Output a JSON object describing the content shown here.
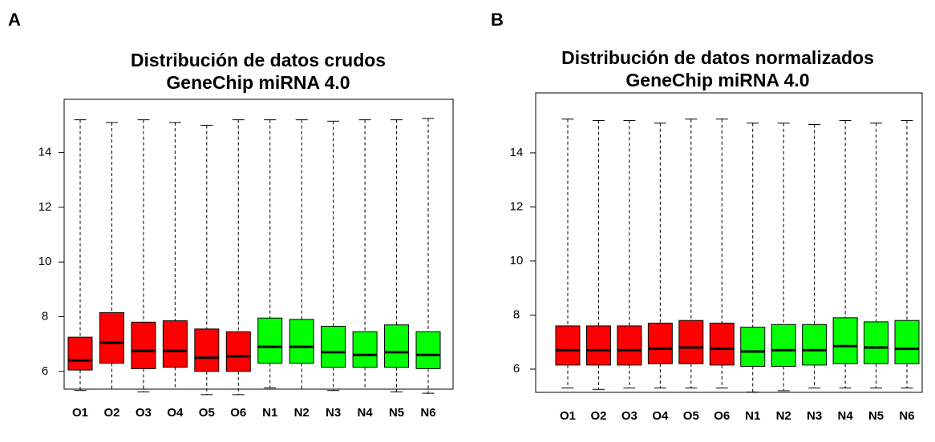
{
  "chart_data": [
    {
      "type": "boxplot",
      "panel_label": "A",
      "title": "Distribución de datos crudos",
      "subtitle": "GeneChip miRNA 4.0",
      "categories": [
        "O1",
        "O2",
        "O3",
        "O4",
        "O5",
        "O6",
        "N1",
        "N2",
        "N3",
        "N4",
        "N5",
        "N6"
      ],
      "colors": [
        "#ff0000",
        "#ff0000",
        "#ff0000",
        "#ff0000",
        "#ff0000",
        "#ff0000",
        "#00ff00",
        "#00ff00",
        "#00ff00",
        "#00ff00",
        "#00ff00",
        "#00ff00"
      ],
      "whisker_low": [
        5.3,
        5.35,
        5.25,
        5.35,
        5.15,
        5.15,
        5.4,
        5.35,
        5.3,
        5.35,
        5.25,
        5.2
      ],
      "q1": [
        6.05,
        6.3,
        6.1,
        6.15,
        6.0,
        6.0,
        6.3,
        6.3,
        6.15,
        6.15,
        6.15,
        6.1
      ],
      "median": [
        6.4,
        7.05,
        6.75,
        6.75,
        6.5,
        6.55,
        6.9,
        6.9,
        6.7,
        6.6,
        6.7,
        6.6
      ],
      "q3": [
        7.25,
        8.15,
        7.8,
        7.85,
        7.55,
        7.45,
        7.95,
        7.9,
        7.65,
        7.45,
        7.7,
        7.45
      ],
      "whisker_high": [
        15.2,
        15.1,
        15.2,
        15.1,
        15.0,
        15.2,
        15.2,
        15.2,
        15.15,
        15.2,
        15.2,
        15.25
      ],
      "ylim": [
        5.35,
        15.95
      ],
      "yticks": [
        6,
        8,
        10,
        12,
        14
      ]
    },
    {
      "type": "boxplot",
      "panel_label": "B",
      "title": "Distribución de datos normalizados",
      "subtitle": "GeneChip miRNA 4.0",
      "categories": [
        "O1",
        "O2",
        "O3",
        "O4",
        "O5",
        "O6",
        "N1",
        "N2",
        "N3",
        "N4",
        "N5",
        "N6"
      ],
      "colors": [
        "#ff0000",
        "#ff0000",
        "#ff0000",
        "#ff0000",
        "#ff0000",
        "#ff0000",
        "#00ff00",
        "#00ff00",
        "#00ff00",
        "#00ff00",
        "#00ff00",
        "#00ff00"
      ],
      "whisker_low": [
        5.3,
        5.25,
        5.3,
        5.3,
        5.3,
        5.3,
        5.15,
        5.2,
        5.3,
        5.3,
        5.3,
        5.3
      ],
      "q1": [
        6.15,
        6.15,
        6.15,
        6.2,
        6.2,
        6.15,
        6.1,
        6.1,
        6.15,
        6.2,
        6.2,
        6.2
      ],
      "median": [
        6.7,
        6.7,
        6.7,
        6.75,
        6.8,
        6.75,
        6.65,
        6.7,
        6.7,
        6.85,
        6.8,
        6.75
      ],
      "q3": [
        7.6,
        7.6,
        7.6,
        7.7,
        7.8,
        7.7,
        7.55,
        7.65,
        7.65,
        7.9,
        7.75,
        7.8
      ],
      "whisker_high": [
        15.25,
        15.2,
        15.2,
        15.1,
        15.25,
        15.25,
        15.1,
        15.1,
        15.05,
        15.2,
        15.1,
        15.2
      ],
      "ylim": [
        5.14,
        16.22
      ],
      "yticks": [
        6,
        8,
        10,
        12,
        14
      ]
    }
  ]
}
